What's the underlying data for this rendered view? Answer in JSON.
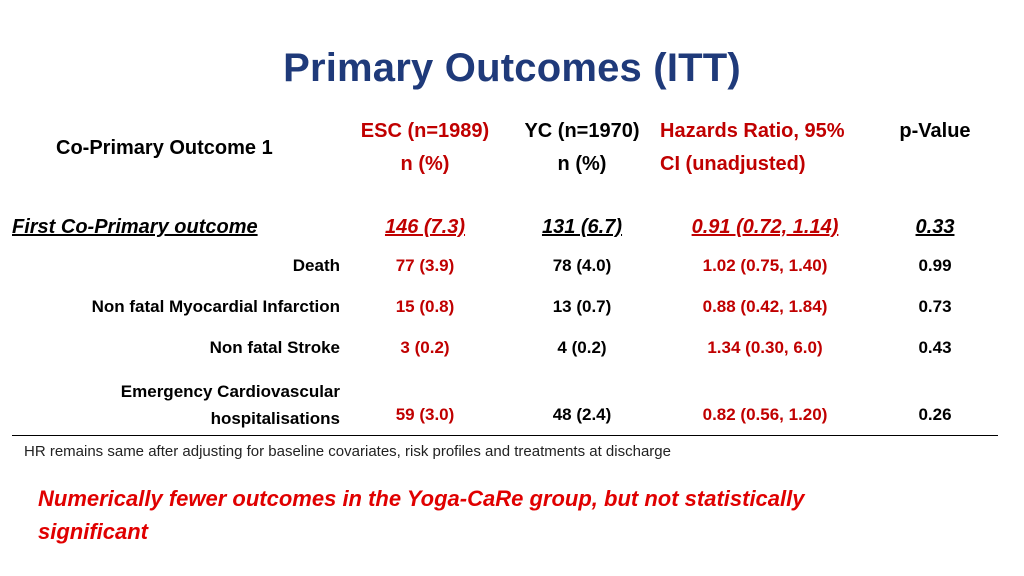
{
  "title": "Primary Outcomes (ITT)",
  "table": {
    "row_header": "Co-Primary Outcome 1",
    "columns": [
      {
        "line1": "ESC (n=1989)",
        "line2": "n (%)",
        "color": "#c00000"
      },
      {
        "line1": "YC (n=1970)",
        "line2": "n (%)",
        "color": "#000000"
      },
      {
        "line1": "Hazards Ratio, 95%",
        "line2": "CI (unadjusted)",
        "color": "#c00000"
      },
      {
        "line1": "p-Value",
        "line2": "",
        "color": "#000000"
      }
    ],
    "section": {
      "label": "First Co-Primary outcome",
      "esc": "146 (7.3)",
      "yc": "131 (6.7)",
      "hr": "0.91 (0.72, 1.14)",
      "p": "0.33"
    },
    "rows": [
      {
        "label": "Death",
        "esc": "77 (3.9)",
        "yc": "78 (4.0)",
        "hr": "1.02 (0.75, 1.40)",
        "p": "0.99"
      },
      {
        "label": "Non fatal Myocardial Infarction",
        "esc": "15 (0.8)",
        "yc": "13 (0.7)",
        "hr": "0.88 (0.42, 1.84)",
        "p": "0.73"
      },
      {
        "label": "Non fatal Stroke",
        "esc": "3 (0.2)",
        "yc": "4 (0.2)",
        "hr": "1.34 (0.30, 6.0)",
        "p": "0.43"
      },
      {
        "label_line1": "Emergency Cardiovascular",
        "label_line2": "hospitalisations",
        "esc": "59 (3.0)",
        "yc": "48 (2.4)",
        "hr": "0.82 (0.56, 1.20)",
        "p": "0.26"
      }
    ]
  },
  "footnote": "HR remains same after adjusting for baseline covariates, risk profiles and treatments at discharge",
  "conclusion": {
    "line1": "Numerically fewer outcomes in the Yoga-CaRe group, but not statistically",
    "line2": "significant"
  }
}
